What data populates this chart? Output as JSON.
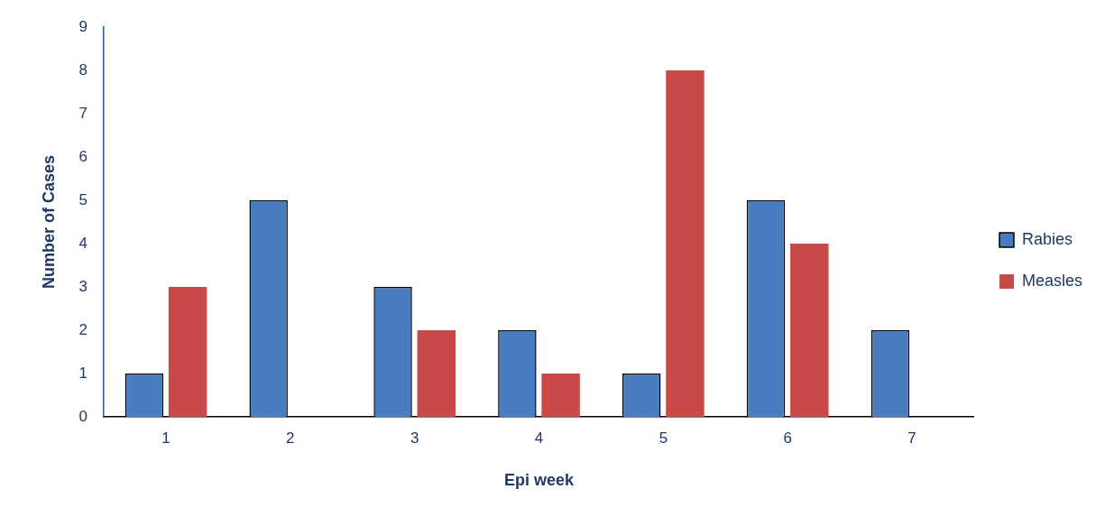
{
  "chart_data": {
    "type": "bar",
    "xlabel": "Epi week",
    "ylabel": "Number of Cases",
    "categories": [
      "1",
      "2",
      "3",
      "4",
      "5",
      "6",
      "7"
    ],
    "series": [
      {
        "name": "Rabies",
        "color": "#4a7cc0",
        "values": [
          1,
          5,
          3,
          2,
          1,
          5,
          2
        ]
      },
      {
        "name": "Measles",
        "color": "#c84a48",
        "values": [
          3,
          0,
          2,
          1,
          8,
          4,
          0
        ]
      }
    ],
    "ylim": [
      0,
      9
    ],
    "yticks": [
      0,
      1,
      2,
      3,
      4,
      5,
      6,
      7,
      8,
      9
    ],
    "grid": false,
    "legend": "right"
  }
}
